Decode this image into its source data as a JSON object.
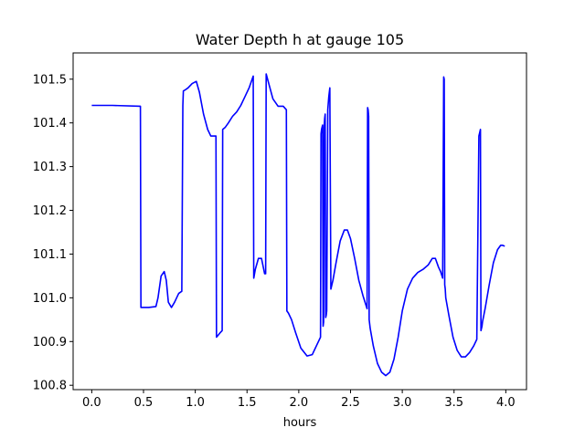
{
  "chart_data": {
    "type": "line",
    "title": "Water Depth h at gauge 105",
    "xlabel": "hours",
    "ylabel": "",
    "xlim": [
      -0.18,
      4.2
    ],
    "ylim": [
      100.79,
      101.56
    ],
    "xticks": [
      0.0,
      0.5,
      1.0,
      1.5,
      2.0,
      2.5,
      3.0,
      3.5,
      4.0
    ],
    "xtick_labels": [
      "0.0",
      "0.5",
      "1.0",
      "1.5",
      "2.0",
      "2.5",
      "3.0",
      "3.5",
      "4.0"
    ],
    "yticks": [
      100.8,
      100.9,
      101.0,
      101.1,
      101.2,
      101.3,
      101.4,
      101.5
    ],
    "ytick_labels": [
      "100.8",
      "100.9",
      "101.0",
      "101.1",
      "101.2",
      "101.3",
      "101.4",
      "101.5"
    ],
    "grid": false,
    "colors": {
      "line": "#0000ff",
      "axes": "#000000",
      "background": "#ffffff"
    },
    "series": [
      {
        "x": [
          0.0,
          0.2,
          0.47,
          0.475,
          0.55,
          0.62,
          0.64,
          0.67,
          0.7,
          0.72,
          0.74,
          0.77,
          0.8,
          0.84,
          0.87,
          0.88,
          0.885,
          0.9,
          0.93,
          0.97,
          1.01,
          1.04,
          1.08,
          1.12,
          1.15,
          1.19,
          1.2,
          1.205,
          1.24,
          1.26,
          1.265,
          1.29,
          1.32,
          1.36,
          1.4,
          1.44,
          1.48,
          1.52,
          1.56,
          1.565,
          1.58,
          1.61,
          1.64,
          1.67,
          1.68,
          1.685,
          1.71,
          1.75,
          1.8,
          1.85,
          1.88,
          1.885,
          1.9,
          1.93,
          1.97,
          2.02,
          2.08,
          2.13,
          2.17,
          2.21,
          2.215,
          2.22,
          2.23,
          2.235,
          2.24,
          2.245,
          2.25,
          2.255,
          2.26,
          2.265,
          2.27,
          2.28,
          2.285,
          2.29,
          2.295,
          2.3,
          2.31,
          2.315,
          2.32,
          2.325,
          2.33,
          2.36,
          2.4,
          2.44,
          2.47,
          2.5,
          2.54,
          2.58,
          2.62,
          2.66,
          2.665,
          2.67,
          2.675,
          2.68,
          2.685,
          2.69,
          2.72,
          2.76,
          2.8,
          2.84,
          2.88,
          2.92,
          2.96,
          3.0,
          3.05,
          3.1,
          3.15,
          3.2,
          3.25,
          3.29,
          3.32,
          3.35,
          3.37,
          3.39,
          3.4,
          3.405,
          3.41,
          3.415,
          3.42,
          3.45,
          3.49,
          3.53,
          3.57,
          3.61,
          3.65,
          3.69,
          3.72,
          3.74,
          3.745,
          3.75,
          3.755,
          3.76,
          3.765,
          3.77,
          3.775,
          3.8,
          3.84,
          3.88,
          3.92,
          3.95,
          3.97,
          3.99
        ],
        "y": [
          101.44,
          101.44,
          101.438,
          100.978,
          100.978,
          100.98,
          101.0,
          101.05,
          101.06,
          101.04,
          100.99,
          100.978,
          100.99,
          101.01,
          101.015,
          101.44,
          101.473,
          101.475,
          101.48,
          101.49,
          101.495,
          101.47,
          101.42,
          101.385,
          101.37,
          101.37,
          101.37,
          100.91,
          100.92,
          100.925,
          101.385,
          101.39,
          101.4,
          101.415,
          101.425,
          101.44,
          101.46,
          101.48,
          101.507,
          101.045,
          101.065,
          101.09,
          101.09,
          101.055,
          101.055,
          101.512,
          101.49,
          101.455,
          101.438,
          101.438,
          101.43,
          100.97,
          100.965,
          100.95,
          100.92,
          100.885,
          100.867,
          100.87,
          100.89,
          100.91,
          101.375,
          101.385,
          101.395,
          100.935,
          100.945,
          101.39,
          101.41,
          101.42,
          100.955,
          100.96,
          100.97,
          101.43,
          101.445,
          101.46,
          101.47,
          101.48,
          101.02,
          101.025,
          101.03,
          101.035,
          101.04,
          101.08,
          101.13,
          101.155,
          101.155,
          101.135,
          101.09,
          101.04,
          101.005,
          100.975,
          101.435,
          101.43,
          101.415,
          100.95,
          100.94,
          100.93,
          100.89,
          100.85,
          100.83,
          100.822,
          100.83,
          100.86,
          100.91,
          100.97,
          101.02,
          101.045,
          101.058,
          101.065,
          101.075,
          101.09,
          101.09,
          101.07,
          101.06,
          101.045,
          101.505,
          101.5,
          101.03,
          101.02,
          101.0,
          100.96,
          100.91,
          100.88,
          100.865,
          100.865,
          100.875,
          100.89,
          100.905,
          101.37,
          101.375,
          101.38,
          101.385,
          100.925,
          100.93,
          100.935,
          100.945,
          100.975,
          101.03,
          101.08,
          101.11,
          101.12,
          101.12,
          101.118
        ]
      }
    ]
  }
}
